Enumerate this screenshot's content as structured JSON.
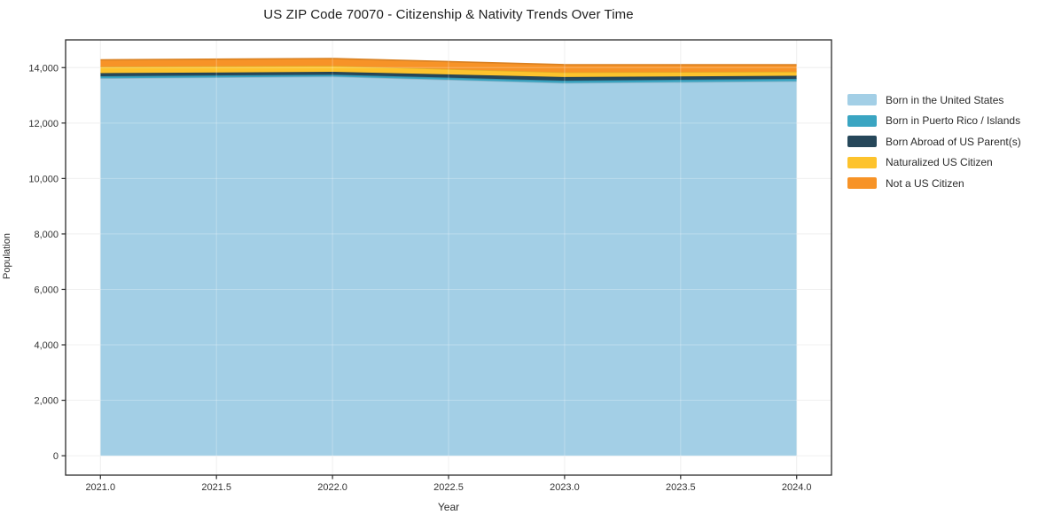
{
  "page": {
    "title": "US ZIP Code 70070 - Citizenship & Nativity Trends Over Time"
  },
  "chart_data": {
    "type": "area",
    "stacked": true,
    "title": "US ZIP Code 70070 - Citizenship & Nativity Trends Over Time",
    "xlabel": "Year",
    "ylabel": "Population",
    "x": [
      2021,
      2022,
      2023,
      2024
    ],
    "series": [
      {
        "name": "Born in the United States",
        "color": "#a3cfe6",
        "values": [
          13615,
          13680,
          13445,
          13510
        ]
      },
      {
        "name": "Born in Puerto Rico / Islands",
        "color": "#3aa5c2",
        "values": [
          75,
          65,
          85,
          85
        ]
      },
      {
        "name": "Born Abroad of US Parent(s)",
        "color": "#26475a",
        "values": [
          110,
          105,
          130,
          110
        ]
      },
      {
        "name": "Naturalized US Citizen",
        "color": "#fdc32d",
        "values": [
          235,
          215,
          170,
          150
        ]
      },
      {
        "name": "Not a US Citizen",
        "color": "#f79327",
        "values": [
          245,
          265,
          275,
          245
        ]
      }
    ],
    "x_ticks": [
      {
        "value": 2021.0,
        "label": "2021.0"
      },
      {
        "value": 2021.5,
        "label": "2021.5"
      },
      {
        "value": 2022.0,
        "label": "2022.0"
      },
      {
        "value": 2022.5,
        "label": "2022.5"
      },
      {
        "value": 2023.0,
        "label": "2023.0"
      },
      {
        "value": 2023.5,
        "label": "2023.5"
      },
      {
        "value": 2024.0,
        "label": "2024.0"
      }
    ],
    "y_ticks": [
      {
        "value": 0,
        "label": "0"
      },
      {
        "value": 2000,
        "label": "2,000"
      },
      {
        "value": 4000,
        "label": "4,000"
      },
      {
        "value": 6000,
        "label": "6,000"
      },
      {
        "value": 8000,
        "label": "8,000"
      },
      {
        "value": 10000,
        "label": "10,000"
      },
      {
        "value": 12000,
        "label": "12,000"
      },
      {
        "value": 14000,
        "label": "14,000"
      }
    ],
    "xlim": [
      2020.85,
      2024.15
    ],
    "ylim": [
      -700,
      15000
    ],
    "grid": true,
    "grid_color": "#ebebeb",
    "axis_color": "#2b2b2b",
    "legend_position": "right-outside"
  }
}
